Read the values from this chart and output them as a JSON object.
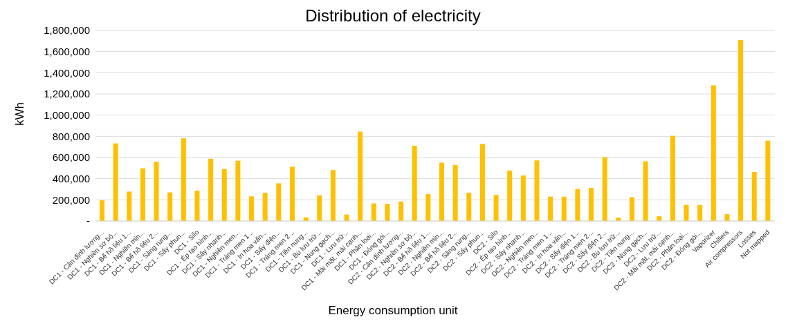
{
  "chart_data": {
    "type": "bar",
    "title": "Distribution of electricity",
    "xlabel": "Energy consumption unit",
    "ylabel": "kWh",
    "categories": [
      "DC1 - Cân định lượng...",
      "DC1 - Nghiền sơ bộ...",
      "DC1 - Bể hồ liệu 1...",
      "DC1 - Nghiền mịn...",
      "DC1 - Bể hồ liệu 2...",
      "DC1 - Sàng rung...",
      "DC1 - Sấy phun...",
      "DC1 - Silo",
      "DC1 - Ép tạo hình...",
      "DC1 - Sấy nhanh...",
      "DC1 - Nghiền men...",
      "DC1 - Tráng men 1...",
      "DC1 - In hoa văn...",
      "DC1 - Sấy điện...",
      "DC1 - Tráng men 2...",
      "DC1 - Tiền nung...",
      "DC1 - Bù lưu trữ...",
      "DC1 - Nung gạch...",
      "DC1 - Lưu trữ...",
      "DC1 - Mài mặt, mài cạnh...",
      "DC1 - Phân loại...",
      "DC1 - Đóng gói...",
      "DC2 - Cân định lượng...",
      "DC2 - Nghiền sơ bộ...",
      "DC2 - Bể hồ liệu 1...",
      "DC2 - Nghiền mịn...",
      "DC2 - Bể hồ liệu 2...",
      "DC2 - Sàng rung...",
      "DC2 - Sấy phun...",
      "DC2 - Silo",
      "DC2 - Ép tạo hình...",
      "DC2 - Sấy nhanh...",
      "DC2 - Nghiền men...",
      "DC2 - Tráng men 1...",
      "DC2 - In hoa văn...",
      "DC2 - Sấy điện 1...",
      "DC2 - Tráng men 2...",
      "DC2 - Sấy điện 2...",
      "DC2 - Bù lưu trữ...",
      "DC2 - Tiền nung...",
      "DC2 - Nung gạch...",
      "DC2 - Lưu trữ...",
      "DC2 - Mài mặt, mài cạnh...",
      "DC2 - Phân loại...",
      "DC2 - Đóng gói...",
      "Vaporizer",
      "Chillers",
      "Air compressors",
      "Losses",
      "Not mapped"
    ],
    "values": [
      195000,
      733000,
      278000,
      497000,
      559000,
      270000,
      781000,
      286000,
      588000,
      489000,
      570000,
      233000,
      267000,
      356000,
      513000,
      35000,
      243000,
      481000,
      61000,
      845000,
      166000,
      163000,
      184000,
      711000,
      254000,
      551000,
      529000,
      267000,
      727000,
      246000,
      476000,
      430000,
      572000,
      230000,
      230000,
      302000,
      313000,
      602000,
      32000,
      225000,
      564000,
      45000,
      805000,
      152000,
      152000,
      1281000,
      64000,
      1709000,
      463000,
      759000
    ],
    "color": "#ffc000",
    "ylim": [
      0,
      1800000
    ],
    "yticks": [
      {
        "value": 0,
        "label": "-"
      },
      {
        "value": 200000,
        "label": "200,000"
      },
      {
        "value": 400000,
        "label": "400,000"
      },
      {
        "value": 600000,
        "label": "600,000"
      },
      {
        "value": 800000,
        "label": "800,000"
      },
      {
        "value": 1000000,
        "label": "1,000,000"
      },
      {
        "value": 1200000,
        "label": "1,200,000"
      },
      {
        "value": 1400000,
        "label": "1,400,000"
      },
      {
        "value": 1600000,
        "label": "1,600,000"
      },
      {
        "value": 1800000,
        "label": "1,800,000"
      }
    ],
    "grid": "y",
    "legend": false
  }
}
